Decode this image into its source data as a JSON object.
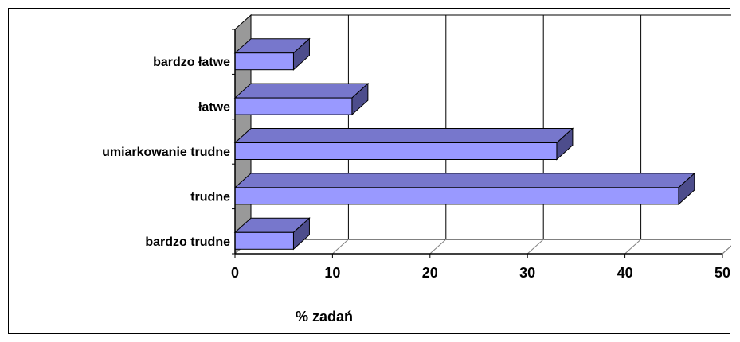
{
  "chart_data": {
    "type": "bar",
    "orientation": "horizontal",
    "three_d": true,
    "categories": [
      "bardzo łatwe",
      "łatwe",
      "umiarkowanie trudne",
      "trudne",
      "bardzo trudne"
    ],
    "values": [
      6,
      12,
      33,
      45.5,
      6
    ],
    "xlabel": "% zadań",
    "ylabel": "",
    "xlim": [
      0,
      50
    ],
    "xticks": [
      "0",
      "10",
      "20",
      "30",
      "40",
      "50"
    ],
    "grid": "vertical",
    "legend": "none",
    "colors": {
      "bar_front": "#9999ff",
      "bar_top": "#7777cc",
      "bar_side": "#4d4d8c",
      "wall": "#ffffff",
      "left_wall": "#999999"
    }
  }
}
